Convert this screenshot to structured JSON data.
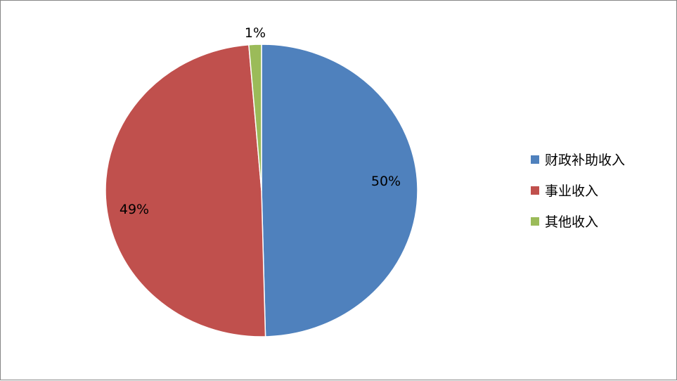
{
  "chart_data": {
    "type": "pie",
    "start_angle": "top",
    "direction": "clockwise",
    "slices": [
      {
        "name": "财政补助收入",
        "value": 49.6,
        "label": "50%",
        "color": "#4F81BD"
      },
      {
        "name": "事业收入",
        "value": 49.1,
        "label": "49%",
        "color": "#C0504D"
      },
      {
        "name": "其他收入",
        "value": 1.3,
        "label": "1%",
        "color": "#9BBB59"
      }
    ],
    "legend_position": "right"
  }
}
